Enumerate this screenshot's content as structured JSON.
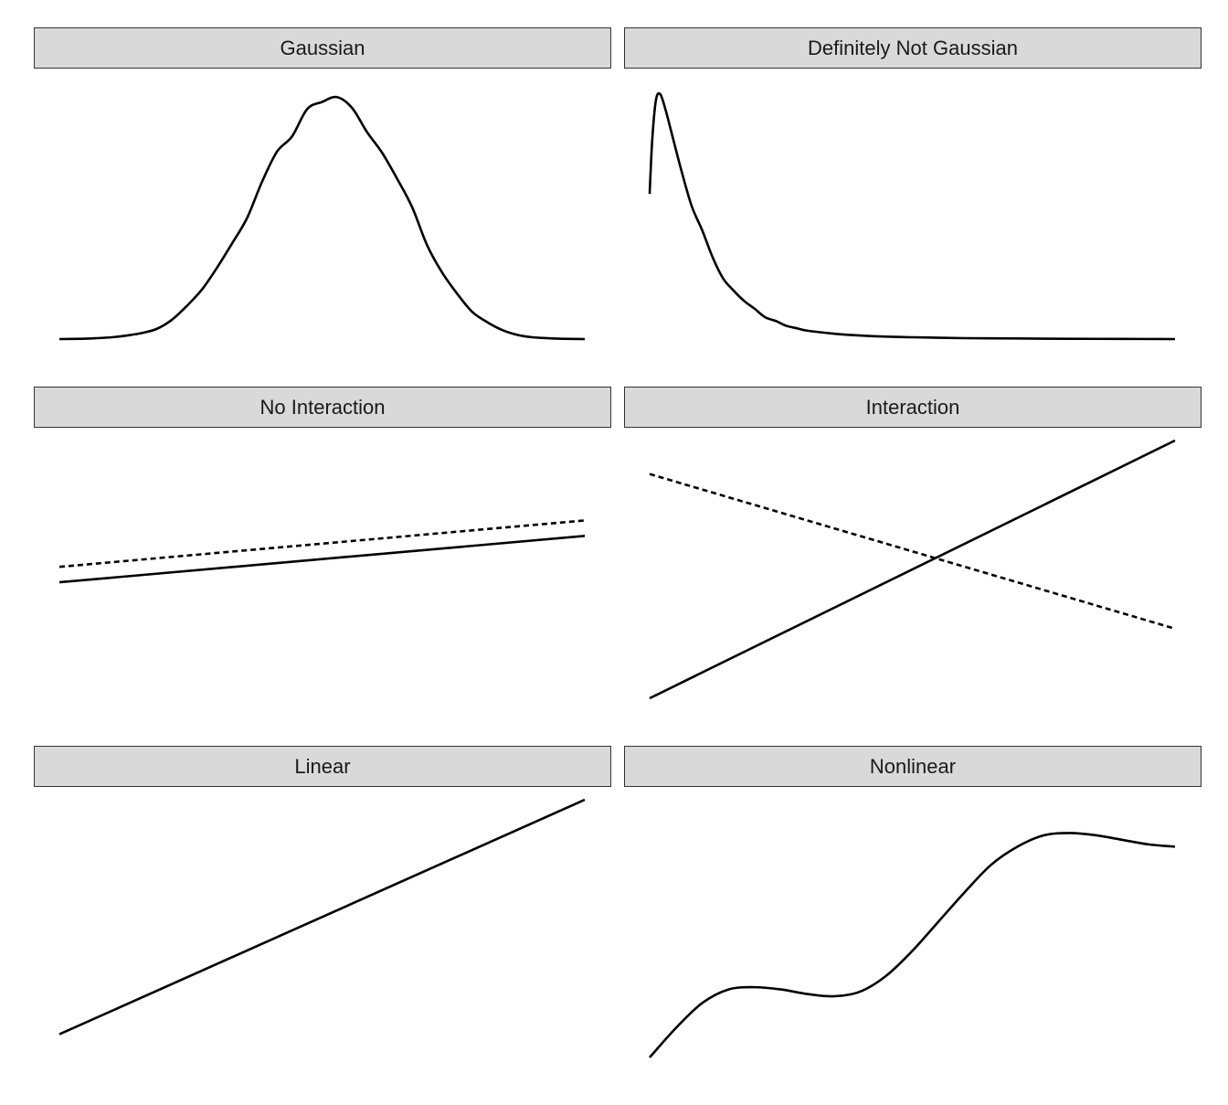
{
  "panels": [
    {
      "title": "Gaussian"
    },
    {
      "title": "Definitely Not Gaussian"
    },
    {
      "title": "No Interaction"
    },
    {
      "title": "Interaction"
    },
    {
      "title": "Linear"
    },
    {
      "title": "Nonlinear"
    }
  ],
  "chart_data": [
    {
      "type": "line",
      "title": "Gaussian",
      "xlim": [
        -3.5,
        3.5
      ],
      "ylim": [
        0,
        0.42
      ],
      "grid": false,
      "series": [
        {
          "style": "solid",
          "x": [
            -3.5,
            -3.2,
            -3.0,
            -2.8,
            -2.6,
            -2.4,
            -2.2,
            -2.0,
            -1.8,
            -1.6,
            -1.4,
            -1.2,
            -1.0,
            -0.8,
            -0.6,
            -0.4,
            -0.2,
            0.0,
            0.2,
            0.4,
            0.6,
            0.8,
            1.0,
            1.2,
            1.4,
            1.6,
            1.8,
            2.0,
            2.2,
            2.4,
            2.6,
            2.8,
            3.0,
            3.2,
            3.5
          ],
          "y": [
            0.0,
            0.0005,
            0.0015,
            0.003,
            0.006,
            0.01,
            0.017,
            0.032,
            0.055,
            0.082,
            0.118,
            0.158,
            0.2,
            0.26,
            0.31,
            0.335,
            0.38,
            0.392,
            0.4,
            0.382,
            0.342,
            0.308,
            0.265,
            0.218,
            0.155,
            0.11,
            0.075,
            0.045,
            0.028,
            0.015,
            0.007,
            0.003,
            0.0015,
            0.0005,
            0.0
          ]
        }
      ]
    },
    {
      "type": "line",
      "title": "Definitely Not Gaussian",
      "xlim": [
        0,
        10
      ],
      "ylim": [
        0,
        0.42
      ],
      "grid": false,
      "series": [
        {
          "style": "solid",
          "x": [
            0.0,
            0.05,
            0.12,
            0.2,
            0.3,
            0.45,
            0.6,
            0.8,
            1.0,
            1.2,
            1.4,
            1.6,
            1.8,
            2.0,
            2.2,
            2.4,
            2.6,
            2.8,
            3.0,
            3.5,
            4.0,
            4.5,
            5.0,
            6.0,
            7.0,
            8.0,
            9.0,
            10.0
          ],
          "y": [
            0.24,
            0.33,
            0.395,
            0.405,
            0.38,
            0.33,
            0.28,
            0.22,
            0.18,
            0.135,
            0.1,
            0.08,
            0.063,
            0.05,
            0.036,
            0.03,
            0.022,
            0.018,
            0.014,
            0.009,
            0.006,
            0.004,
            0.003,
            0.0015,
            0.001,
            0.0005,
            0.0003,
            0.0
          ]
        }
      ]
    },
    {
      "type": "line",
      "title": "No Interaction",
      "xlim": [
        0,
        1
      ],
      "ylim": [
        0,
        1
      ],
      "grid": false,
      "series": [
        {
          "style": "dashed",
          "x": [
            0,
            1
          ],
          "y": [
            0.51,
            0.69
          ]
        },
        {
          "style": "solid",
          "x": [
            0,
            1
          ],
          "y": [
            0.45,
            0.63
          ]
        }
      ]
    },
    {
      "type": "line",
      "title": "Interaction",
      "xlim": [
        0,
        1
      ],
      "ylim": [
        0,
        1
      ],
      "grid": false,
      "series": [
        {
          "style": "dashed",
          "x": [
            0,
            1
          ],
          "y": [
            0.87,
            0.27
          ]
        },
        {
          "style": "solid",
          "x": [
            0,
            1
          ],
          "y": [
            0.0,
            1.0
          ]
        }
      ]
    },
    {
      "type": "line",
      "title": "Linear",
      "xlim": [
        0,
        1
      ],
      "ylim": [
        0,
        1
      ],
      "grid": false,
      "series": [
        {
          "style": "solid",
          "x": [
            0,
            1
          ],
          "y": [
            0.09,
            1.0
          ]
        }
      ]
    },
    {
      "type": "line",
      "title": "Nonlinear",
      "xlim": [
        0,
        1
      ],
      "ylim": [
        0,
        1
      ],
      "grid": false,
      "series": [
        {
          "style": "solid",
          "x": [
            0.0,
            0.05,
            0.1,
            0.15,
            0.2,
            0.25,
            0.3,
            0.35,
            0.4,
            0.45,
            0.5,
            0.55,
            0.6,
            0.65,
            0.7,
            0.75,
            0.8,
            0.85,
            0.9,
            0.95,
            1.0
          ],
          "y": [
            0.0,
            0.13,
            0.24,
            0.3,
            0.31,
            0.3,
            0.28,
            0.27,
            0.29,
            0.36,
            0.47,
            0.6,
            0.73,
            0.85,
            0.93,
            0.98,
            0.99,
            0.98,
            0.96,
            0.94,
            0.93
          ]
        }
      ]
    }
  ]
}
